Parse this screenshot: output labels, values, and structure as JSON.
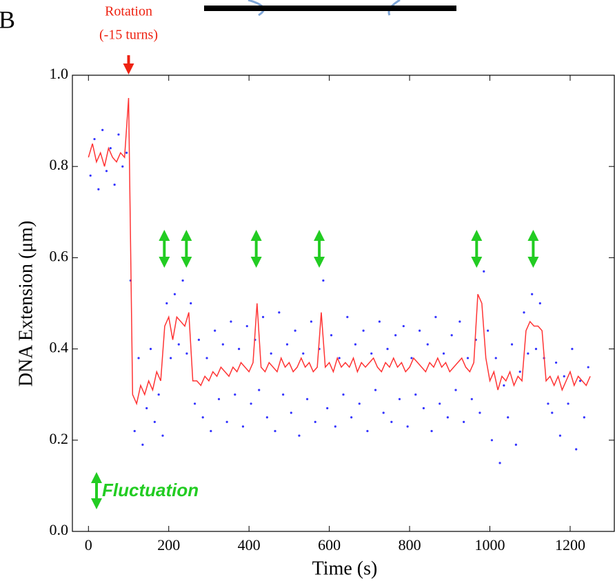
{
  "chart_data": {
    "type": "line",
    "panel_label": "B",
    "xlabel": "Time (s)",
    "ylabel": "DNA  Extension (μm)",
    "xlim": [
      -40,
      1310
    ],
    "ylim": [
      0,
      1
    ],
    "xticks": [
      0,
      200,
      400,
      600,
      800,
      1000,
      1200
    ],
    "yticks": [
      {
        "value": 0,
        "label": "0.0"
      },
      {
        "value": 0.2,
        "label": "0.2"
      },
      {
        "value": 0.4,
        "label": "0.4"
      },
      {
        "value": 0.6,
        "label": "0.6"
      },
      {
        "value": 0.8,
        "label": "0.8"
      },
      {
        "value": 1,
        "label": "1.0"
      }
    ],
    "series": [
      {
        "mode": "points",
        "color": "#3333ff",
        "x": [
          5,
          15,
          25,
          35,
          45,
          55,
          65,
          75,
          85,
          95,
          105,
          115,
          125,
          135,
          145,
          155,
          165,
          175,
          185,
          195,
          205,
          215,
          225,
          235,
          245,
          255,
          265,
          275,
          285,
          295,
          305,
          315,
          325,
          335,
          345,
          355,
          365,
          375,
          385,
          395,
          405,
          415,
          425,
          435,
          445,
          455,
          465,
          475,
          485,
          495,
          505,
          515,
          525,
          535,
          545,
          555,
          565,
          575,
          585,
          595,
          605,
          615,
          625,
          635,
          645,
          655,
          665,
          675,
          685,
          695,
          705,
          715,
          725,
          735,
          745,
          755,
          765,
          775,
          785,
          795,
          805,
          815,
          825,
          835,
          845,
          855,
          865,
          875,
          885,
          895,
          905,
          915,
          925,
          935,
          945,
          955,
          965,
          975,
          985,
          995,
          1005,
          1015,
          1025,
          1035,
          1045,
          1055,
          1065,
          1075,
          1085,
          1095,
          1105,
          1115,
          1125,
          1135,
          1145,
          1155,
          1165,
          1175,
          1185,
          1195,
          1205,
          1215,
          1225,
          1235,
          1245
        ],
        "values": [
          0.78,
          0.86,
          0.75,
          0.88,
          0.79,
          0.84,
          0.76,
          0.87,
          0.8,
          0.83,
          0.55,
          0.22,
          0.38,
          0.19,
          0.27,
          0.4,
          0.24,
          0.3,
          0.21,
          0.5,
          0.38,
          0.52,
          0.41,
          0.55,
          0.39,
          0.5,
          0.28,
          0.42,
          0.25,
          0.38,
          0.22,
          0.44,
          0.29,
          0.41,
          0.24,
          0.46,
          0.3,
          0.4,
          0.23,
          0.45,
          0.28,
          0.42,
          0.31,
          0.47,
          0.25,
          0.39,
          0.22,
          0.48,
          0.3,
          0.41,
          0.26,
          0.44,
          0.21,
          0.39,
          0.29,
          0.46,
          0.24,
          0.4,
          0.55,
          0.27,
          0.43,
          0.23,
          0.38,
          0.3,
          0.47,
          0.25,
          0.41,
          0.28,
          0.44,
          0.22,
          0.39,
          0.31,
          0.46,
          0.26,
          0.4,
          0.24,
          0.43,
          0.29,
          0.45,
          0.23,
          0.38,
          0.3,
          0.44,
          0.27,
          0.41,
          0.22,
          0.47,
          0.28,
          0.39,
          0.25,
          0.43,
          0.31,
          0.46,
          0.24,
          0.38,
          0.29,
          0.42,
          0.26,
          0.57,
          0.44,
          0.2,
          0.38,
          0.15,
          0.32,
          0.25,
          0.41,
          0.19,
          0.35,
          0.48,
          0.39,
          0.52,
          0.4,
          0.5,
          0.38,
          0.28,
          0.26,
          0.37,
          0.21,
          0.34,
          0.28,
          0.4,
          0.18,
          0.33,
          0.25,
          0.36
        ]
      },
      {
        "mode": "line",
        "color": "#ff3333",
        "x": [
          0,
          10,
          20,
          30,
          40,
          50,
          60,
          70,
          80,
          90,
          100,
          110,
          120,
          130,
          140,
          150,
          160,
          170,
          180,
          190,
          200,
          210,
          220,
          230,
          240,
          250,
          260,
          270,
          280,
          290,
          300,
          310,
          320,
          330,
          340,
          350,
          360,
          370,
          380,
          390,
          400,
          410,
          420,
          430,
          440,
          450,
          460,
          470,
          480,
          490,
          500,
          510,
          520,
          530,
          540,
          550,
          560,
          570,
          580,
          590,
          600,
          610,
          620,
          630,
          640,
          650,
          660,
          670,
          680,
          690,
          700,
          710,
          720,
          730,
          740,
          750,
          760,
          770,
          780,
          790,
          800,
          810,
          820,
          830,
          840,
          850,
          860,
          870,
          880,
          890,
          900,
          910,
          920,
          930,
          940,
          950,
          960,
          970,
          980,
          990,
          1000,
          1010,
          1020,
          1030,
          1040,
          1050,
          1060,
          1070,
          1080,
          1090,
          1100,
          1110,
          1120,
          1130,
          1140,
          1150,
          1160,
          1170,
          1180,
          1190,
          1200,
          1210,
          1220,
          1230,
          1240,
          1250
        ],
        "values": [
          0.82,
          0.85,
          0.81,
          0.83,
          0.8,
          0.84,
          0.82,
          0.81,
          0.83,
          0.82,
          0.95,
          0.3,
          0.28,
          0.32,
          0.3,
          0.33,
          0.31,
          0.35,
          0.33,
          0.45,
          0.47,
          0.42,
          0.47,
          0.46,
          0.45,
          0.48,
          0.33,
          0.33,
          0.32,
          0.34,
          0.33,
          0.35,
          0.34,
          0.36,
          0.35,
          0.34,
          0.36,
          0.35,
          0.37,
          0.36,
          0.35,
          0.37,
          0.5,
          0.36,
          0.35,
          0.37,
          0.36,
          0.35,
          0.38,
          0.36,
          0.37,
          0.35,
          0.36,
          0.38,
          0.36,
          0.37,
          0.35,
          0.36,
          0.48,
          0.36,
          0.37,
          0.35,
          0.38,
          0.36,
          0.37,
          0.36,
          0.38,
          0.35,
          0.37,
          0.36,
          0.37,
          0.38,
          0.36,
          0.35,
          0.37,
          0.36,
          0.38,
          0.36,
          0.37,
          0.35,
          0.36,
          0.38,
          0.37,
          0.36,
          0.35,
          0.37,
          0.36,
          0.38,
          0.36,
          0.37,
          0.35,
          0.36,
          0.37,
          0.38,
          0.36,
          0.35,
          0.37,
          0.52,
          0.5,
          0.38,
          0.33,
          0.35,
          0.31,
          0.34,
          0.33,
          0.35,
          0.32,
          0.34,
          0.33,
          0.44,
          0.46,
          0.45,
          0.45,
          0.44,
          0.33,
          0.34,
          0.32,
          0.34,
          0.31,
          0.33,
          0.35,
          0.32,
          0.34,
          0.33,
          0.32,
          0.34
        ]
      }
    ],
    "annotations": {
      "rotation_text": [
        "Rotation",
        "(-15 turns)"
      ],
      "rotation_time": 100,
      "fluctuation_label": "Fluctuation",
      "fluctuation_times": [
        189,
        244,
        418,
        575,
        967,
        1108
      ]
    }
  }
}
